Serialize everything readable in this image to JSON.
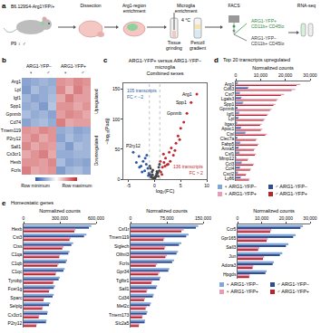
{
  "schematic": {
    "label": "a",
    "strain": "B6.129S4-Arg1YFP/+",
    "animals": "P9 ♀ ♂",
    "steps": [
      "Dissection",
      "Arg1-region enrichment",
      "Microglia enrichment",
      "FACS",
      "RNA-seq"
    ],
    "notes": [
      "Tissue grinding",
      "Percoll gradient",
      "4 °C"
    ],
    "sorted": [
      "ARG1-YFP+ CD11b+ CD45lo",
      "ARG1-YFP− CD11b+ CD45lo"
    ]
  },
  "chart_data": [
    {
      "panel": "b",
      "type": "heatmap",
      "columns": [
        {
          "group": "ARG1-YFP−",
          "sex": "♀"
        },
        {
          "group": "ARG1-YFP−",
          "sex": "♀"
        },
        {
          "group": "ARG1-YFP−",
          "sex": "♂"
        },
        {
          "group": "ARG1-YFP−",
          "sex": "♂"
        },
        {
          "group": "ARG1-YFP+",
          "sex": "♀"
        },
        {
          "group": "ARG1-YFP+",
          "sex": "♀"
        },
        {
          "group": "ARG1-YFP+",
          "sex": "♂"
        },
        {
          "group": "ARG1-YFP+",
          "sex": "♂"
        }
      ],
      "rows": [
        "Arg1",
        "Lpl",
        "Igf1",
        "Spp1",
        "Gpnmb",
        "Cd74",
        "Tmem119",
        "P2ry12",
        "Sall1",
        "Cx3cr1",
        "Hexb",
        "Fcrls"
      ],
      "row_groups": [
        {
          "label": "Upregulated",
          "rows": 6
        },
        {
          "label": "Downregulated",
          "rows": 6
        }
      ],
      "z": [
        [
          -1.1,
          -1.0,
          -0.9,
          -1.0,
          1.0,
          0.9,
          1.1,
          1.0
        ],
        [
          -1.2,
          -0.8,
          -1.0,
          -0.9,
          1.1,
          0.7,
          1.2,
          0.9
        ],
        [
          -0.9,
          -1.1,
          -1.0,
          -0.8,
          0.8,
          1.2,
          0.9,
          0.9
        ],
        [
          -1.0,
          -0.9,
          -1.2,
          -0.7,
          1.0,
          1.0,
          0.8,
          1.0
        ],
        [
          -0.8,
          -1.0,
          -0.9,
          -1.1,
          0.9,
          1.1,
          1.0,
          0.8
        ],
        [
          -1.1,
          -0.9,
          -0.8,
          -1.0,
          1.2,
          0.8,
          0.9,
          0.9
        ],
        [
          1.0,
          0.9,
          1.1,
          1.0,
          -1.0,
          -0.9,
          -1.1,
          -1.0
        ],
        [
          0.9,
          1.1,
          0.8,
          1.0,
          -1.1,
          -0.8,
          -1.0,
          -0.9
        ],
        [
          1.1,
          0.8,
          1.0,
          0.9,
          -0.9,
          -1.2,
          -0.8,
          -0.9
        ],
        [
          0.8,
          1.0,
          1.2,
          0.8,
          -1.0,
          -1.0,
          -0.9,
          -0.9
        ],
        [
          1.0,
          1.0,
          0.9,
          1.1,
          -0.8,
          -1.1,
          -1.0,
          -1.1
        ],
        [
          1.2,
          0.8,
          0.9,
          1.0,
          -1.2,
          -0.9,
          -0.8,
          -1.0
        ]
      ],
      "zlim": [
        -2,
        2
      ],
      "colorbar_ticks": [
        {
          "value": -2,
          "label": "Row minimum"
        },
        {
          "value": 2,
          "label": "Row maximum"
        }
      ]
    },
    {
      "panel": "c",
      "type": "scatter",
      "title": "ARG1-YFP+ versus ARG1-YFP− microglia",
      "subtitle": "Combined sexes",
      "x_label": "log₂(FC)",
      "y_label": "−log₁₀(Padj)",
      "xlim": [
        -6,
        10
      ],
      "xticks": [
        -5,
        0,
        5,
        10
      ],
      "ylim": [
        0,
        160
      ],
      "yticks": [
        0,
        50,
        100,
        150
      ],
      "groups": [
        {
          "color": "#444444",
          "x": [
            -0.9,
            -0.7,
            -0.5,
            -0.3,
            -0.1,
            0.1,
            0.3,
            0.5,
            0.7,
            0.9,
            -0.8,
            -0.4,
            0,
            0.4,
            0.8,
            -0.6,
            -0.2,
            0.2,
            0.6,
            -0.95,
            0.95,
            0.05,
            -0.35,
            0.45
          ],
          "y": [
            8,
            4,
            12,
            2,
            1,
            3,
            6,
            10,
            5,
            14,
            18,
            7,
            0.5,
            9,
            20,
            3,
            2,
            4,
            11,
            22,
            25,
            1,
            15,
            13
          ]
        },
        {
          "color": "#c0282d",
          "x": [
            1.2,
            1.5,
            1.8,
            2.1,
            2.4,
            2.8,
            3.2,
            3.6,
            4.1,
            4.5,
            5.0,
            5.6,
            6.2,
            7.0,
            8.1,
            1.4,
            2.0,
            2.6,
            3.0,
            3.9,
            4.8,
            1.1,
            1.7
          ],
          "y": [
            12,
            20,
            28,
            35,
            24,
            45,
            52,
            40,
            60,
            72,
            85,
            95,
            110,
            128,
            142,
            8,
            22,
            25,
            30,
            48,
            66,
            30,
            42
          ]
        },
        {
          "color": "#2b5aa8",
          "x": [
            -1.1,
            -1.3,
            -1.6,
            -1.9,
            -2.2,
            -2.6,
            -3.0,
            -3.5,
            -4.1,
            -1.2,
            -1.8,
            -2.4,
            -2.9,
            -1.5
          ],
          "y": [
            10,
            18,
            25,
            14,
            30,
            22,
            38,
            28,
            45,
            6,
            35,
            12,
            20,
            40
          ]
        }
      ],
      "fc_cutoffs": [
        -1,
        1
      ],
      "annotations": [
        {
          "text": "105 transcripts FC < −2",
          "side": "left"
        },
        {
          "text": "136 transcripts FC > 2",
          "side": "right"
        }
      ],
      "point_labels": [
        {
          "text": "Arg1",
          "x": 8.1,
          "y": 142
        },
        {
          "text": "Spp1",
          "x": 7.0,
          "y": 128
        },
        {
          "text": "Gpnmb",
          "x": 6.2,
          "y": 110
        },
        {
          "text": "P2ry12",
          "x": -4.1,
          "y": 45
        }
      ]
    },
    {
      "panel": "d",
      "type": "bar",
      "orientation": "horizontal",
      "title": "Top 20 transcripts upregulated",
      "x_label": "Normalized counts",
      "categories": [
        "Arg1",
        "Cd63",
        "Cst7",
        "Lgals3",
        "Spp1",
        "Gpnmb",
        "Igf1",
        "Lpl",
        "Itgax",
        "Apoc1",
        "Ctsl",
        "Clec7a",
        "Fabp5",
        "Anxa5",
        "Csf1",
        "Mmp12",
        "Ccl3",
        "Ccl4",
        "Cxcl2",
        "Ly86"
      ],
      "series": [
        {
          "name": "♀ ARG1-YFP−",
          "color": "#7fa6d9",
          "values": [
            900,
            5200,
            1800,
            2400,
            3100,
            800,
            1500,
            1200,
            600,
            2200,
            4100,
            700,
            1900,
            1300,
            1600,
            200,
            2500,
            1800,
            900,
            2100
          ]
        },
        {
          "name": "♂ ARG1-YFP−",
          "color": "#2f4d8f",
          "values": [
            800,
            4900,
            1600,
            2100,
            2800,
            700,
            1300,
            1000,
            500,
            2000,
            3800,
            600,
            1700,
            1100,
            1500,
            180,
            2300,
            1600,
            800,
            1900
          ]
        },
        {
          "name": "♀ ARG1-YFP+",
          "color": "#e89bb5",
          "values": [
            26000,
            24000,
            19500,
            17000,
            16000,
            14500,
            13000,
            11800,
            10500,
            10800,
            12500,
            8600,
            9300,
            7800,
            8200,
            5100,
            7400,
            6200,
            4300,
            5600
          ]
        },
        {
          "name": "♂ ARG1-YFP+",
          "color": "#b3262f",
          "values": [
            24500,
            22500,
            18200,
            16400,
            15200,
            13800,
            12600,
            11200,
            9800,
            10100,
            11900,
            8100,
            8800,
            7300,
            7700,
            4800,
            7000,
            5800,
            4000,
            5300
          ]
        }
      ],
      "xlim": [
        0,
        30000
      ],
      "xticks": [
        0,
        {
          "value": 10000,
          "label": "10,000"
        },
        {
          "value": 20000,
          "label": "20,000"
        },
        {
          "value": 30000,
          "label": "30,000"
        }
      ],
      "legend": "bottom"
    },
    {
      "panel": "e",
      "type": "bar",
      "orientation": "horizontal",
      "title": "Homeostatic genes",
      "x_label": "Normalized counts",
      "categories": [
        "Hexb",
        "Cst3",
        "Ctss",
        "C1qa",
        "C1qb",
        "C1qc",
        "Tyrobp",
        "Fcer1g",
        "Sparc",
        "Selplg",
        "Cx3cr1",
        "P2ry12"
      ],
      "series": [
        {
          "name": "♀ ARG1-YFP−",
          "color": "#7fa6d9",
          "values": [
            560000,
            520000,
            410000,
            380000,
            360000,
            340000,
            300000,
            260000,
            250000,
            220000,
            200000,
            190000
          ]
        },
        {
          "name": "♂ ARG1-YFP−",
          "color": "#2f4d8f",
          "values": [
            540000,
            500000,
            395000,
            370000,
            350000,
            330000,
            290000,
            250000,
            240000,
            210000,
            195000,
            185000
          ]
        },
        {
          "name": "♀ ARG1-YFP+",
          "color": "#e89bb5",
          "values": [
            430000,
            390000,
            330000,
            300000,
            290000,
            270000,
            250000,
            215000,
            170000,
            160000,
            130000,
            110000
          ]
        },
        {
          "name": "♂ ARG1-YFP+",
          "color": "#b3262f",
          "values": [
            420000,
            380000,
            320000,
            295000,
            280000,
            265000,
            245000,
            210000,
            165000,
            155000,
            125000,
            105000
          ]
        }
      ],
      "xlim": [
        0,
        600000
      ],
      "xticks": [
        0,
        {
          "value": 300000,
          "label": "300,000"
        },
        {
          "value": 600000,
          "label": "600,000"
        }
      ]
    },
    {
      "type": "bar",
      "orientation": "horizontal",
      "x_label": "Normalized counts",
      "categories": [
        "Csf1r",
        "Tmem119",
        "Siglech",
        "Olfml3",
        "Fcrls",
        "Gpr34",
        "Tgfbr1",
        "Sall1",
        "Cd34",
        "Mef2c",
        "Tmem173",
        "Slc2a5"
      ],
      "series": [
        {
          "name": "♀ ARG1-YFP−",
          "color": "#7fa6d9",
          "values": [
            140000,
            120000,
            105000,
            98000,
            90000,
            80000,
            62000,
            55000,
            48000,
            42000,
            35000,
            30000
          ]
        },
        {
          "name": "♂ ARG1-YFP−",
          "color": "#2f4d8f",
          "values": [
            135000,
            115000,
            100000,
            95000,
            86000,
            78000,
            60000,
            53000,
            46000,
            40000,
            33000,
            29000
          ]
        },
        {
          "name": "♀ ARG1-YFP+",
          "color": "#e89bb5",
          "values": [
            110000,
            70000,
            72000,
            75000,
            55000,
            60000,
            45000,
            35000,
            30000,
            33000,
            25000,
            18000
          ]
        },
        {
          "name": "♂ ARG1-YFP+",
          "color": "#b3262f",
          "values": [
            105000,
            68000,
            70000,
            72000,
            52000,
            57000,
            43000,
            33000,
            28000,
            31000,
            24000,
            17000
          ]
        }
      ],
      "xlim": [
        0,
        150000
      ],
      "xticks": [
        0,
        {
          "value": 75000,
          "label": "75,000"
        },
        {
          "value": 150000,
          "label": "150,000"
        }
      ]
    },
    {
      "type": "bar",
      "orientation": "horizontal",
      "x_label": "Normalized counts",
      "categories": [
        "Ccr5",
        "Gpr165",
        "Sall3",
        "Jun",
        "Adora3",
        "Hpgds"
      ],
      "series": [
        {
          "name": "♀ ARG1-YFP−",
          "color": "#7fa6d9",
          "values": [
            27000,
            24000,
            21000,
            18500,
            15000,
            12000
          ]
        },
        {
          "name": "♂ ARG1-YFP−",
          "color": "#2f4d8f",
          "values": [
            26000,
            23000,
            20000,
            17500,
            14500,
            11500
          ]
        },
        {
          "name": "♀ ARG1-YFP+",
          "color": "#e89bb5",
          "values": [
            14000,
            12500,
            9000,
            11000,
            6500,
            5000
          ]
        },
        {
          "name": "♂ ARG1-YFP+",
          "color": "#b3262f",
          "values": [
            13500,
            12000,
            8500,
            10500,
            6200,
            4800
          ]
        }
      ],
      "xlim": [
        0,
        30000
      ],
      "xticks": [
        0,
        {
          "value": 10000,
          "label": "10,000"
        },
        {
          "value": 20000,
          "label": "20,000"
        },
        {
          "value": 30000,
          "label": "30,000"
        }
      ],
      "legend": "bottom"
    }
  ]
}
